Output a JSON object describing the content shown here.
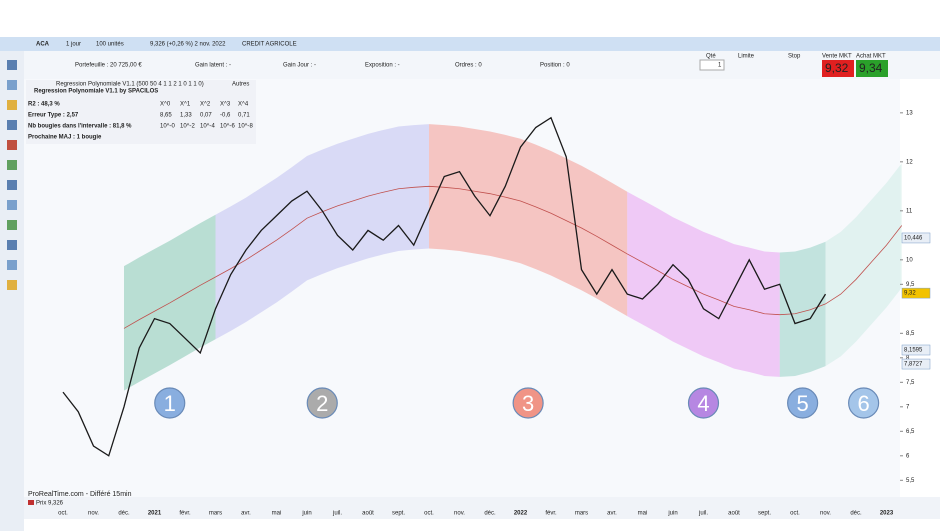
{
  "window": {
    "symbol": "ACA",
    "period": "1 jour",
    "units": "100 unités",
    "quote": "9,326 (+0,26 %) 2 nov. 2022",
    "name": "CREDIT AGRICOLE"
  },
  "account": {
    "portfolio": "Portefeuille : 20 725,00 €",
    "latent": "Gain latent : -",
    "day": "Gain Jour : -",
    "exposure": "Exposition : -",
    "orders": "Ordres : 0",
    "position": "Position : 0"
  },
  "order_panel": {
    "qty_label": "Qté",
    "qty": "1",
    "limit": "Limite",
    "stop": "Stop",
    "sell_label": "Vente MKT",
    "buy_label": "Achat MKT",
    "sell": "9,32",
    "buy": "9,34"
  },
  "indicator": {
    "title": "Regression Polynomiale V1.1 (500 50 4 1 1 2 1 0 1 1 0)",
    "tab": "Autres",
    "subtitle": "Regression Polynomiale V1.1 by SPACILOS",
    "rows": [
      [
        "R2 : 48,3 %",
        "X^0",
        "X^1",
        "X^2",
        "X^3",
        "X^4"
      ],
      [
        "Erreur Type : 2,57",
        "8,65",
        "1,33",
        "0,07",
        "-0,6",
        "0,71"
      ],
      [
        "Nb bougies dans l'intervalle : 81,8 %",
        "10^-0",
        "10^-2",
        "10^-4",
        "10^-6",
        "10^-8"
      ],
      [
        "Prochaine MAJ : 1 bougie"
      ]
    ]
  },
  "chart_data": {
    "type": "line",
    "categories": [
      "oct.",
      null,
      "nov.",
      null,
      "déc.",
      null,
      "2021",
      null,
      "févr.",
      null,
      "mars",
      null,
      "avr.",
      null,
      "mai",
      null,
      "juin",
      null,
      "juil.",
      null,
      "août",
      null,
      "sept.",
      null,
      "oct.",
      null,
      "nov.",
      null,
      "déc.",
      null,
      "2022",
      null,
      "févr.",
      null,
      "mars",
      null,
      "avr.",
      null,
      "mai",
      null,
      "juin",
      null,
      "juil.",
      null,
      "août",
      null,
      "sept.",
      null,
      "oct.",
      null,
      "nov.",
      null,
      "déc.",
      null,
      "2023",
      null
    ],
    "series": [
      {
        "name": "Prix",
        "color": "#1a1a1a",
        "values": [
          7.3,
          6.9,
          6.2,
          6.0,
          7.0,
          8.2,
          8.8,
          8.7,
          8.4,
          8.1,
          9.0,
          9.7,
          10.2,
          10.6,
          10.9,
          11.2,
          11.4,
          11.0,
          10.5,
          10.2,
          10.6,
          10.4,
          10.7,
          10.3,
          11.0,
          11.7,
          11.8,
          11.3,
          10.9,
          11.5,
          12.3,
          12.7,
          12.9,
          12.1,
          9.8,
          9.3,
          9.8,
          9.3,
          9.2,
          9.5,
          9.9,
          9.6,
          9.0,
          8.8,
          9.4,
          10.0,
          9.4,
          9.5,
          8.7,
          8.8,
          9.3,
          null,
          null,
          null,
          null,
          null
        ]
      }
    ],
    "regression": {
      "color": "#c0504d",
      "band": 1.27,
      "values": [
        null,
        null,
        null,
        null,
        8.6,
        8.78,
        8.95,
        9.12,
        9.3,
        9.48,
        9.65,
        9.82,
        10.0,
        10.2,
        10.4,
        10.62,
        10.85,
        10.98,
        11.1,
        11.2,
        11.3,
        11.38,
        11.45,
        11.48,
        11.5,
        11.48,
        11.45,
        11.4,
        11.35,
        11.28,
        11.2,
        11.08,
        10.95,
        10.8,
        10.65,
        10.48,
        10.3,
        10.12,
        9.95,
        9.78,
        9.6,
        9.45,
        9.3,
        9.18,
        9.05,
        8.98,
        8.9,
        8.88,
        8.9,
        8.98,
        9.1,
        9.3,
        9.6,
        9.95,
        10.3,
        10.7
      ]
    },
    "zones": [
      {
        "label": "1",
        "start": 4,
        "end": 10,
        "color": "#8fcbb8",
        "badge": "#7ea6dc"
      },
      {
        "label": "2",
        "start": 10,
        "end": 24,
        "color": "#c4c4f2",
        "badge": "#a3a3a3"
      },
      {
        "label": "3",
        "start": 24,
        "end": 37,
        "color": "#f4a29b",
        "badge": "#f08a7a"
      },
      {
        "label": "4",
        "start": 37,
        "end": 47,
        "color": "#eaa9f2",
        "badge": "#b07be0"
      },
      {
        "label": "5",
        "start": 47,
        "end": 50,
        "color": "#9fd4c9",
        "badge": "#7ea6dc"
      },
      {
        "label": "6",
        "start": 50,
        "end": 55,
        "color": "#d2ece8",
        "badge": "#9cc0e8"
      }
    ],
    "ylim": [
      5.2,
      13.67
    ],
    "yticks": [
      {
        "value": 5.5,
        "label": "5,5"
      },
      6,
      {
        "value": 6.5,
        "label": "6,5"
      },
      7,
      {
        "value": 7.5,
        "label": "7,5"
      },
      8,
      {
        "value": 8.5,
        "label": "8,5"
      },
      {
        "value": 9.5,
        "label": "9,5"
      },
      10,
      11,
      12,
      13
    ],
    "price_tags": [
      {
        "value": 10.446,
        "label": "10,446"
      },
      {
        "value": 9.32,
        "label": "9,32"
      },
      {
        "value": 8.1595,
        "label": "8,1595"
      },
      {
        "value": 7.8727,
        "label": "7,8727"
      }
    ]
  },
  "footer": {
    "source": "ProRealTime.com - Différé 15min",
    "price": "Prix 9,326"
  }
}
